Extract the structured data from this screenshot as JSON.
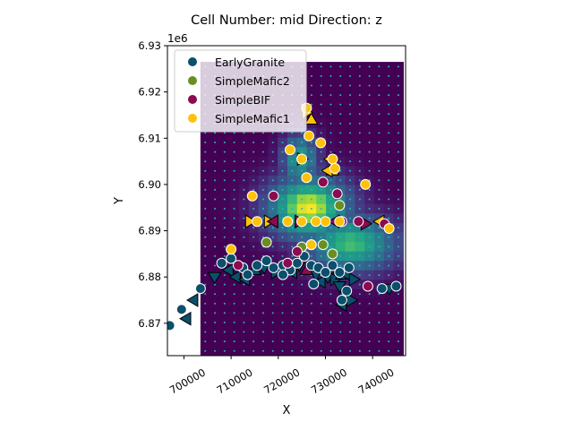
{
  "chart_data": {
    "type": "scatter",
    "title": "Cell Number: mid Direction: z",
    "xlabel": "X",
    "ylabel": "Y",
    "y_offset_label": "1e6",
    "xlim": [
      696500,
      747000
    ],
    "ylim": [
      6863000,
      6930000
    ],
    "x_ticks": [
      700000,
      710000,
      720000,
      730000,
      740000
    ],
    "x_tick_labels": [
      "700000",
      "710000",
      "720000",
      "730000",
      "740000"
    ],
    "y_ticks": [
      6870000,
      6880000,
      6890000,
      6900000,
      6910000,
      6920000,
      6930000
    ],
    "y_tick_labels": [
      "6.87",
      "6.88",
      "6.89",
      "6.90",
      "6.91",
      "6.92",
      "6.93"
    ],
    "legend_position": "top-left",
    "colors": {
      "EarlyGranite": "#0b4f6c",
      "SimpleMafic2": "#6b8e23",
      "SimpleBIF": "#8b0a50",
      "SimpleMafic1": "#ffc20a",
      "grid_low": "#440154",
      "grid_dots": "#2fb0b8"
    },
    "background_grid": {
      "colormap": "viridis",
      "x_range": [
        703500,
        746500
      ],
      "y_range": [
        6863000,
        6926500
      ],
      "cols": 21,
      "rows": 31
    },
    "series": [
      {
        "name": "EarlyGranite",
        "points": [
          [
            697000,
            6869500
          ],
          [
            699500,
            6873000
          ],
          [
            703500,
            6877500
          ],
          [
            708000,
            6883000
          ],
          [
            710000,
            6884000
          ],
          [
            712500,
            6882000
          ],
          [
            713500,
            6880500
          ],
          [
            717500,
            6883500
          ],
          [
            719000,
            6882000
          ],
          [
            721000,
            6882500
          ],
          [
            722500,
            6881500
          ],
          [
            724000,
            6883000
          ],
          [
            725500,
            6884500
          ],
          [
            727000,
            6882500
          ],
          [
            728500,
            6882000
          ],
          [
            730000,
            6881000
          ],
          [
            731500,
            6882500
          ],
          [
            733000,
            6881000
          ],
          [
            735000,
            6882000
          ],
          [
            733500,
            6875000
          ],
          [
            734500,
            6877000
          ],
          [
            742000,
            6877500
          ],
          [
            745000,
            6878000
          ],
          [
            727500,
            6878500
          ],
          [
            721000,
            6880500
          ],
          [
            715500,
            6882500
          ]
        ]
      },
      {
        "name": "SimpleMafic2",
        "points": [
          [
            717500,
            6887500
          ],
          [
            725000,
            6886500
          ],
          [
            727000,
            6887000
          ],
          [
            729500,
            6887000
          ],
          [
            731500,
            6885000
          ],
          [
            733000,
            6895500
          ]
        ]
      },
      {
        "name": "SimpleBIF",
        "points": [
          [
            711500,
            6882500
          ],
          [
            719000,
            6897500
          ],
          [
            724000,
            6885500
          ],
          [
            722000,
            6883000
          ],
          [
            729500,
            6900500
          ],
          [
            732500,
            6898000
          ],
          [
            733500,
            6892000
          ],
          [
            737000,
            6892000
          ],
          [
            742500,
            6891500
          ],
          [
            739000,
            6878000
          ]
        ]
      },
      {
        "name": "SimpleMafic1",
        "points": [
          [
            710000,
            6886000
          ],
          [
            714500,
            6897500
          ],
          [
            715500,
            6892000
          ],
          [
            722500,
            6907500
          ],
          [
            725000,
            6905500
          ],
          [
            726000,
            6901500
          ],
          [
            726000,
            6916500
          ],
          [
            726500,
            6910500
          ],
          [
            729000,
            6909000
          ],
          [
            730000,
            6892000
          ],
          [
            731500,
            6905500
          ],
          [
            732000,
            6903500
          ],
          [
            733000,
            6892000
          ],
          [
            738500,
            6900000
          ],
          [
            743500,
            6890500
          ],
          [
            727000,
            6887000
          ],
          [
            722000,
            6892000
          ],
          [
            725000,
            6892000
          ],
          [
            728000,
            6892000
          ]
        ]
      }
    ],
    "triangle_markers": [
      {
        "x": 700500,
        "y": 6871000,
        "dir": "left",
        "series": "EarlyGranite"
      },
      {
        "x": 702000,
        "y": 6875000,
        "dir": "left",
        "series": "EarlyGranite"
      },
      {
        "x": 706500,
        "y": 6880000,
        "dir": "down",
        "series": "EarlyGranite"
      },
      {
        "x": 709500,
        "y": 6881500,
        "dir": "left",
        "series": "EarlyGranite"
      },
      {
        "x": 711000,
        "y": 6880000,
        "dir": "left",
        "series": "EarlyGranite"
      },
      {
        "x": 713000,
        "y": 6879500,
        "dir": "left",
        "series": "EarlyGranite"
      },
      {
        "x": 715000,
        "y": 6881500,
        "dir": "up",
        "series": "EarlyGranite"
      },
      {
        "x": 717000,
        "y": 6882000,
        "dir": "down",
        "series": "EarlyGranite"
      },
      {
        "x": 719500,
        "y": 6881000,
        "dir": "right",
        "series": "EarlyGranite"
      },
      {
        "x": 721500,
        "y": 6881500,
        "dir": "down",
        "series": "EarlyGranite"
      },
      {
        "x": 723000,
        "y": 6881000,
        "dir": "left",
        "series": "EarlyGranite"
      },
      {
        "x": 724500,
        "y": 6882500,
        "dir": "down",
        "series": "EarlyGranite"
      },
      {
        "x": 726500,
        "y": 6881500,
        "dir": "up",
        "series": "EarlyGranite"
      },
      {
        "x": 728000,
        "y": 6880500,
        "dir": "down",
        "series": "EarlyGranite"
      },
      {
        "x": 729000,
        "y": 6879000,
        "dir": "left",
        "series": "EarlyGranite"
      },
      {
        "x": 730500,
        "y": 6880000,
        "dir": "down",
        "series": "EarlyGranite"
      },
      {
        "x": 732000,
        "y": 6879500,
        "dir": "right",
        "series": "EarlyGranite"
      },
      {
        "x": 733500,
        "y": 6880500,
        "dir": "up",
        "series": "EarlyGranite"
      },
      {
        "x": 733000,
        "y": 6878000,
        "dir": "down",
        "series": "EarlyGranite"
      },
      {
        "x": 734000,
        "y": 6876500,
        "dir": "up",
        "series": "EarlyGranite"
      },
      {
        "x": 735500,
        "y": 6875000,
        "dir": "right",
        "series": "EarlyGranite"
      },
      {
        "x": 733500,
        "y": 6874000,
        "dir": "left",
        "series": "EarlyGranite"
      },
      {
        "x": 734500,
        "y": 6880500,
        "dir": "left",
        "series": "EarlyGranite"
      },
      {
        "x": 736000,
        "y": 6879500,
        "dir": "right",
        "series": "EarlyGranite"
      },
      {
        "x": 743500,
        "y": 6877500,
        "dir": "down",
        "series": "EarlyGranite"
      },
      {
        "x": 714000,
        "y": 6892000,
        "dir": "right",
        "series": "SimpleMafic1"
      },
      {
        "x": 718000,
        "y": 6892000,
        "dir": "right",
        "series": "SimpleMafic1"
      },
      {
        "x": 725000,
        "y": 6905500,
        "dir": "right",
        "series": "SimpleMafic1"
      },
      {
        "x": 727000,
        "y": 6914000,
        "dir": "up",
        "series": "SimpleMafic1"
      },
      {
        "x": 726000,
        "y": 6915500,
        "dir": "right",
        "series": "SimpleMafic1"
      },
      {
        "x": 731000,
        "y": 6905500,
        "dir": "left",
        "series": "SimpleMafic1"
      },
      {
        "x": 731500,
        "y": 6903000,
        "dir": "up",
        "series": "SimpleMafic1"
      },
      {
        "x": 730500,
        "y": 6903000,
        "dir": "left",
        "series": "SimpleMafic1"
      },
      {
        "x": 741500,
        "y": 6892000,
        "dir": "left",
        "series": "SimpleMafic1"
      },
      {
        "x": 719000,
        "y": 6892000,
        "dir": "left",
        "series": "SimpleBIF"
      },
      {
        "x": 738500,
        "y": 6891500,
        "dir": "right",
        "series": "SimpleBIF"
      },
      {
        "x": 726000,
        "y": 6881500,
        "dir": "up",
        "series": "SimpleBIF"
      },
      {
        "x": 725000,
        "y": 6883500,
        "dir": "down",
        "series": "SimpleBIF"
      },
      {
        "x": 732000,
        "y": 6892000,
        "dir": "left",
        "series": "SimpleBIF"
      },
      {
        "x": 724500,
        "y": 6892000,
        "dir": "right",
        "series": "SimpleBIF"
      }
    ]
  }
}
